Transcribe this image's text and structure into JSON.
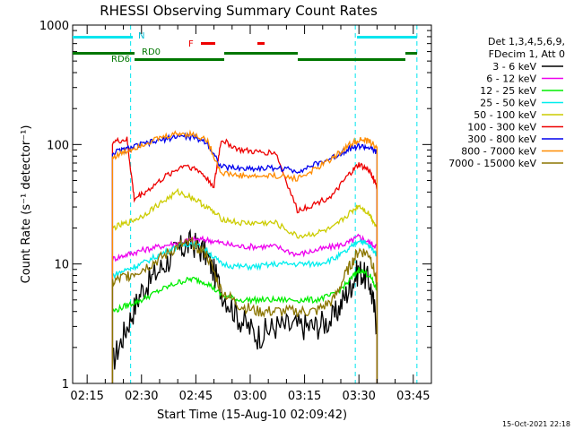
{
  "title": "RHESSI Observing Summary Count Rates",
  "xlabel": "Start Time (15-Aug-10 02:09:42)",
  "ylabel": "Count Rate (s⁻¹ detector⁻¹)",
  "timestamp": "15-Oct-2021 22:18",
  "legend_header": [
    "Det 1,3,4,5,6,9,",
    "FDecim 1, Att 0"
  ],
  "flags": {
    "N": "N",
    "F": "F",
    "RD0": "RD0",
    "RD6": "RD6",
    "colors": {
      "night": "#00e5ee",
      "flare": "#ee0000",
      "decim": "#007700"
    }
  },
  "chart_data": {
    "type": "line",
    "y_scale": "log",
    "xlim": [
      "02:11",
      "03:50"
    ],
    "ylim": [
      1,
      1000
    ],
    "x_ticks": [
      "02:15",
      "02:30",
      "02:45",
      "03:00",
      "03:15",
      "03:30",
      "03:45"
    ],
    "y_ticks": [
      "1",
      "10",
      "100",
      "1000"
    ],
    "legend_position": "right",
    "night_markers": [
      "02:27",
      "03:29",
      "03:46"
    ],
    "series": [
      {
        "name": "3 - 6 keV",
        "color": "#000000",
        "x": [
          "02:22",
          "02:26",
          "02:30",
          "02:35",
          "02:40",
          "02:44",
          "02:48",
          "02:52",
          "02:57",
          "03:02",
          "03:07",
          "03:13",
          "03:18",
          "03:23",
          "03:27",
          "03:30",
          "03:33",
          "03:35"
        ],
        "y": [
          1.5,
          3,
          6,
          9,
          13,
          15,
          12,
          6,
          3.5,
          2.5,
          3,
          3,
          3,
          3.5,
          6,
          9,
          7,
          3
        ]
      },
      {
        "name": "6 - 12 keV",
        "color": "#ee00ee",
        "x": [
          "02:22",
          "02:26",
          "02:30",
          "02:35",
          "02:40",
          "02:44",
          "02:48",
          "02:52",
          "02:57",
          "03:02",
          "03:07",
          "03:13",
          "03:18",
          "03:23",
          "03:27",
          "03:30",
          "03:33",
          "03:35"
        ],
        "y": [
          11,
          12,
          13,
          14,
          15,
          16,
          16,
          15,
          14,
          14,
          14,
          12,
          13,
          14,
          15,
          17,
          15,
          14
        ]
      },
      {
        "name": "12 - 25 keV",
        "color": "#00ee00",
        "x": [
          "02:22",
          "02:26",
          "02:30",
          "02:35",
          "02:40",
          "02:44",
          "02:48",
          "02:52",
          "02:57",
          "03:02",
          "03:07",
          "03:13",
          "03:18",
          "03:23",
          "03:27",
          "03:30",
          "03:33",
          "03:35"
        ],
        "y": [
          4,
          4.5,
          5,
          6,
          7,
          7.5,
          7,
          5.5,
          5,
          5,
          5,
          5,
          5,
          5.5,
          7,
          9,
          8,
          6
        ]
      },
      {
        "name": "25 - 50 keV",
        "color": "#00eeee",
        "x": [
          "02:22",
          "02:26",
          "02:30",
          "02:35",
          "02:40",
          "02:44",
          "02:48",
          "02:52",
          "02:57",
          "03:02",
          "03:07",
          "03:13",
          "03:18",
          "03:23",
          "03:27",
          "03:30",
          "03:33",
          "03:35"
        ],
        "y": [
          8,
          9,
          10,
          12,
          14,
          15,
          13,
          10,
          9.5,
          9.5,
          10,
          10,
          10,
          11,
          13,
          16,
          14,
          12
        ]
      },
      {
        "name": "50 - 100 keV",
        "color": "#cccc00",
        "x": [
          "02:22",
          "02:26",
          "02:30",
          "02:35",
          "02:40",
          "02:44",
          "02:48",
          "02:52",
          "02:57",
          "03:02",
          "03:07",
          "03:13",
          "03:18",
          "03:23",
          "03:27",
          "03:30",
          "03:33",
          "03:35"
        ],
        "y": [
          20,
          22,
          25,
          32,
          40,
          36,
          30,
          24,
          22,
          22,
          22,
          17,
          18,
          20,
          26,
          31,
          26,
          20
        ]
      },
      {
        "name": "100 - 300 keV",
        "color": "#ee0000",
        "x": [
          "02:22",
          "02:26",
          "02:28",
          "02:32",
          "02:37",
          "02:42",
          "02:46",
          "02:50",
          "02:52",
          "02:57",
          "03:02",
          "03:07",
          "03:13",
          "03:18",
          "03:23",
          "03:27",
          "03:30",
          "03:33",
          "03:35"
        ],
        "y": [
          105,
          110,
          35,
          42,
          55,
          68,
          60,
          45,
          110,
          90,
          86,
          86,
          28,
          32,
          38,
          55,
          68,
          60,
          45
        ]
      },
      {
        "name": "300 - 800 keV",
        "color": "#0000ee",
        "x": [
          "02:22",
          "02:26",
          "02:30",
          "02:35",
          "02:40",
          "02:44",
          "02:48",
          "02:52",
          "02:57",
          "03:02",
          "03:07",
          "03:13",
          "03:18",
          "03:23",
          "03:27",
          "03:30",
          "03:33",
          "03:35"
        ],
        "y": [
          85,
          92,
          100,
          108,
          118,
          115,
          105,
          65,
          63,
          63,
          64,
          60,
          68,
          78,
          92,
          97,
          94,
          85
        ]
      },
      {
        "name": "800 - 7000 keV",
        "color": "#ff8c00",
        "x": [
          "02:22",
          "02:26",
          "02:30",
          "02:35",
          "02:40",
          "02:44",
          "02:48",
          "02:52",
          "02:57",
          "03:02",
          "03:07",
          "03:13",
          "03:18",
          "03:23",
          "03:27",
          "03:30",
          "03:33",
          "03:35"
        ],
        "y": [
          78,
          88,
          100,
          113,
          124,
          122,
          110,
          58,
          55,
          54,
          55,
          52,
          62,
          78,
          98,
          110,
          105,
          95
        ]
      },
      {
        "name": "7000 - 15000 keV",
        "color": "#8b7500",
        "x": [
          "02:22",
          "02:26",
          "02:30",
          "02:35",
          "02:40",
          "02:44",
          "02:48",
          "02:52",
          "02:57",
          "03:02",
          "03:07",
          "03:13",
          "03:18",
          "03:23",
          "03:27",
          "03:30",
          "03:33",
          "03:35"
        ],
        "y": [
          7,
          8,
          9,
          11,
          14,
          15,
          12,
          6,
          4.5,
          4,
          4,
          4,
          4,
          5,
          9,
          13,
          12,
          7
        ]
      }
    ]
  }
}
